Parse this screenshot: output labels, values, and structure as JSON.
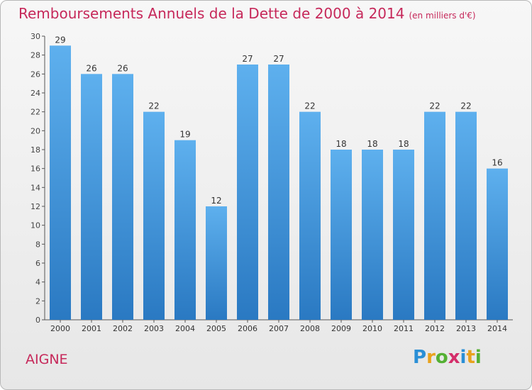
{
  "title": "Remboursements Annuels de la Dette de 2000 à 2014",
  "subtitle": "(en milliers d'€)",
  "commune": "AIGNE",
  "logo": {
    "letters": [
      "P",
      "r",
      "o",
      "x",
      "i",
      "t",
      "i"
    ],
    "colors": [
      "#2a8fd6",
      "#e8a21c",
      "#54b033",
      "#d42e6a",
      "#2a8fd6",
      "#e8a21c",
      "#54b033"
    ]
  },
  "chart_data": {
    "type": "bar",
    "categories": [
      "2000",
      "2001",
      "2002",
      "2003",
      "2004",
      "2005",
      "2006",
      "2007",
      "2008",
      "2009",
      "2010",
      "2011",
      "2012",
      "2013",
      "2014"
    ],
    "values": [
      29,
      26,
      26,
      22,
      19,
      12,
      27,
      27,
      22,
      18,
      18,
      18,
      22,
      22,
      16
    ],
    "title": "Remboursements Annuels de la Dette de 2000 à 2014",
    "subtitle": "(en milliers d'€)",
    "ylim": [
      0,
      30
    ],
    "yticks": [
      0,
      2,
      4,
      6,
      8,
      10,
      12,
      14,
      16,
      18,
      20,
      22,
      24,
      26,
      28,
      30
    ],
    "grid": false,
    "bar_color_top": "#5eb0ee",
    "bar_color_bottom": "#2a79c2"
  }
}
